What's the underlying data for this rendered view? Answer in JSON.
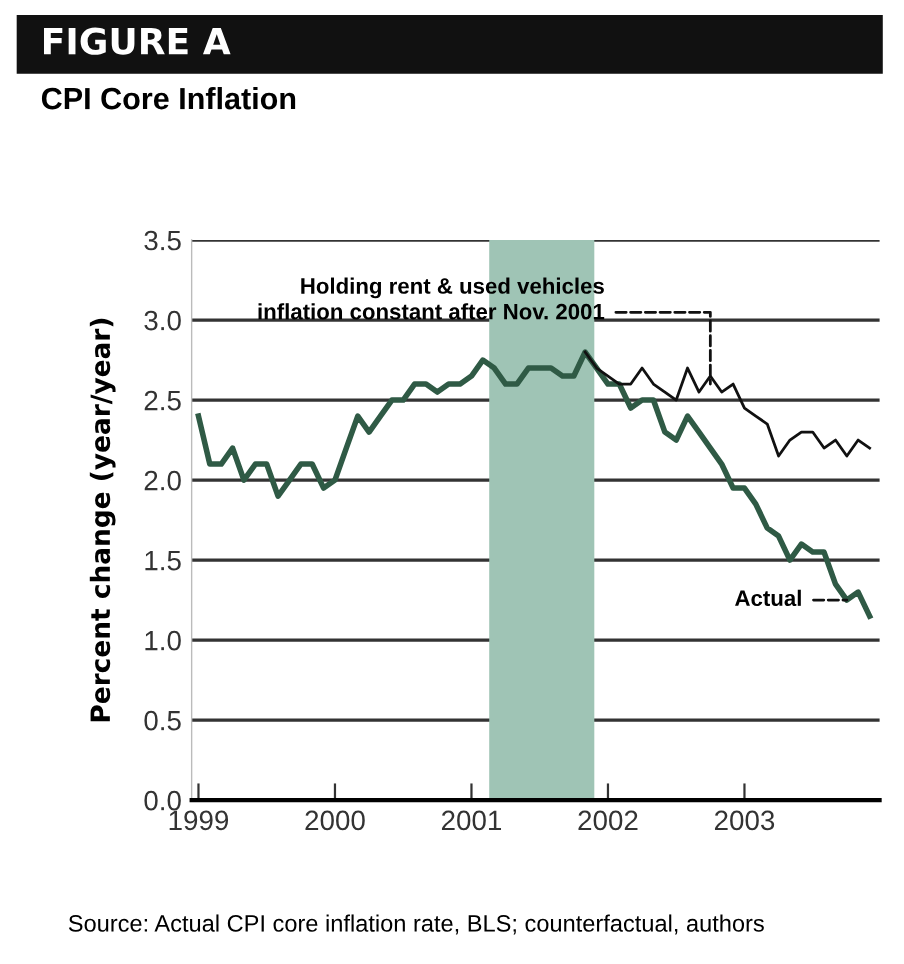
{
  "chart_data": {
    "type": "line",
    "title": "FIGURE A",
    "subtitle": "CPI Core Inflation",
    "ylabel": "Percent change (year/year)",
    "x": [
      1999.0,
      1999.083,
      1999.167,
      1999.25,
      1999.333,
      1999.417,
      1999.5,
      1999.583,
      1999.667,
      1999.75,
      1999.833,
      1999.917,
      2000.0,
      2000.083,
      2000.167,
      2000.25,
      2000.333,
      2000.417,
      2000.5,
      2000.583,
      2000.667,
      2000.75,
      2000.833,
      2000.917,
      2001.0,
      2001.083,
      2001.167,
      2001.25,
      2001.333,
      2001.417,
      2001.5,
      2001.583,
      2001.667,
      2001.75,
      2001.833,
      2001.917,
      2002.0,
      2002.083,
      2002.167,
      2002.25,
      2002.333,
      2002.417,
      2002.5,
      2002.583,
      2002.667,
      2002.75,
      2002.833,
      2002.917,
      2003.0,
      2003.083,
      2003.167,
      2003.25,
      2003.333,
      2003.417,
      2003.5,
      2003.583,
      2003.667,
      2003.75,
      2003.833,
      2003.917
    ],
    "series": [
      {
        "color": "#2f5a45",
        "values": [
          2.4,
          2.1,
          2.1,
          2.2,
          2.0,
          2.1,
          2.1,
          1.9,
          2.0,
          2.1,
          2.1,
          1.95,
          2.0,
          2.2,
          2.4,
          2.3,
          2.4,
          2.5,
          2.5,
          2.6,
          2.6,
          2.55,
          2.6,
          2.6,
          2.65,
          2.75,
          2.7,
          2.6,
          2.6,
          2.7,
          2.7,
          2.7,
          2.65,
          2.65,
          2.8,
          2.7,
          2.6,
          2.6,
          2.45,
          2.5,
          2.5,
          2.3,
          2.25,
          2.4,
          2.3,
          2.2,
          2.1,
          1.95,
          1.95,
          1.85,
          1.7,
          1.65,
          1.5,
          1.6,
          1.55,
          1.55,
          1.35,
          1.25,
          1.3,
          1.15
        ]
      },
      {
        "color": "#111111",
        "values": [
          null,
          null,
          null,
          null,
          null,
          null,
          null,
          null,
          null,
          null,
          null,
          null,
          null,
          null,
          null,
          null,
          null,
          null,
          null,
          null,
          null,
          null,
          null,
          null,
          null,
          null,
          null,
          null,
          null,
          null,
          null,
          null,
          null,
          null,
          2.8,
          2.7,
          2.65,
          2.6,
          2.6,
          2.7,
          2.6,
          2.55,
          2.5,
          2.7,
          2.55,
          2.65,
          2.55,
          2.6,
          2.45,
          2.4,
          2.35,
          2.15,
          2.25,
          2.3,
          2.3,
          2.2,
          2.25,
          2.15,
          2.25,
          2.2
        ]
      }
    ],
    "xlim": [
      1998.95,
      2003.99
    ],
    "xticks": [
      1999,
      2000,
      2001,
      2002,
      2003
    ],
    "ylim": [
      0,
      3.5
    ],
    "yticks": [
      {
        "value": 0,
        "label": "0.0"
      },
      {
        "value": 0.5,
        "label": "0.5"
      },
      {
        "value": 1,
        "label": "1.0"
      },
      {
        "value": 1.5,
        "label": "1.5"
      },
      {
        "value": 2,
        "label": "2.0"
      },
      {
        "value": 2.5,
        "label": "2.5"
      },
      {
        "value": 3,
        "label": "3.0"
      },
      {
        "value": 3.5,
        "label": "3.5"
      }
    ],
    "grid": "y",
    "bands": [
      {
        "axis": "x",
        "from": 2001.13,
        "to": 2001.9,
        "color": "#9fc4b5"
      }
    ],
    "annotations": [
      {
        "text": "Holding rent & used vehicles\ninflation constant after Nov. 2001",
        "x": 2002.75,
        "y": 2.6
      },
      {
        "text": "Actual",
        "x": 2003.75,
        "y": 1.25
      },
      "Source: Actual CPI core inflation rate, BLS; counterfactual, authors"
    ]
  }
}
